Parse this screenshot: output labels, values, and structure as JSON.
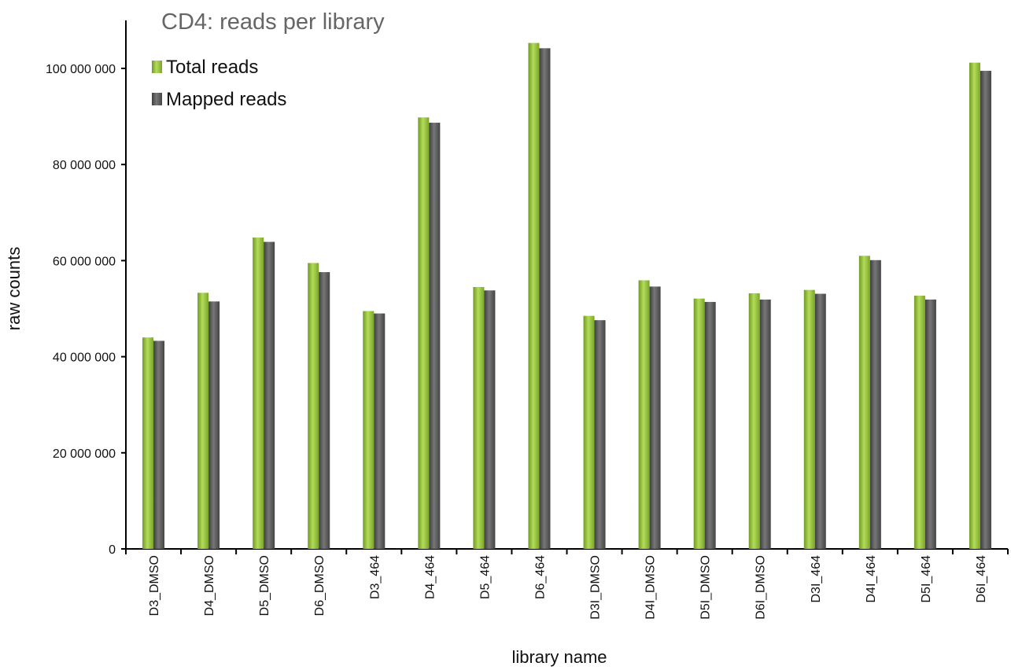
{
  "chart_data": {
    "type": "bar",
    "title": "CD4: reads per library",
    "xlabel": "library name",
    "ylabel": "raw counts",
    "ylim": [
      0,
      110000000
    ],
    "yticks": [
      0,
      20000000,
      40000000,
      60000000,
      80000000,
      100000000
    ],
    "ytick_labels": [
      "0",
      "20 000 000",
      "40 000 000",
      "60 000 000",
      "80 000 000",
      "100 000 000"
    ],
    "grid": false,
    "legend_position": "top-left",
    "categories": [
      "D3_DMSO",
      "D4_DMSO",
      "D5_DMSO",
      "D6_DMSO",
      "D3_464",
      "D4_464",
      "D5_464",
      "D6_464",
      "D3I_DMSO",
      "D4I_DMSO",
      "D5I_DMSO",
      "D6I_DMSO",
      "D3I_464",
      "D4I_464",
      "D5I_464",
      "D6I_464"
    ],
    "series": [
      {
        "name": "Total reads",
        "color": "#8DB83A",
        "values": [
          44000000,
          53300000,
          64800000,
          59500000,
          49500000,
          89800000,
          54500000,
          105300000,
          48500000,
          55900000,
          52100000,
          53200000,
          53900000,
          61000000,
          52700000,
          101200000
        ]
      },
      {
        "name": "Mapped reads",
        "color": "#555555",
        "values": [
          43300000,
          51500000,
          63900000,
          57600000,
          49000000,
          88700000,
          53800000,
          104200000,
          47600000,
          54600000,
          51400000,
          51900000,
          53100000,
          60100000,
          51900000,
          99500000
        ]
      }
    ]
  }
}
